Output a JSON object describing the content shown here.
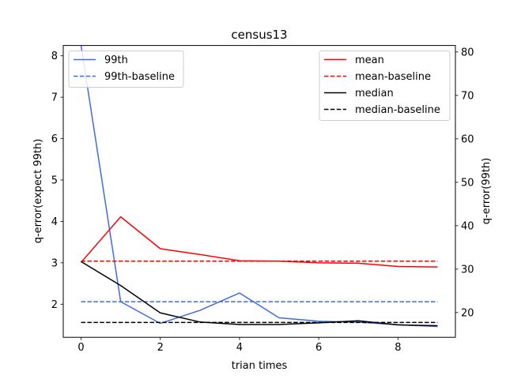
{
  "chart_data": {
    "type": "line",
    "title": "census13",
    "xlabel": "trian times",
    "ylabel_left": "q-error(expect 99th)",
    "ylabel_right": "q-error(99th)",
    "x": [
      0,
      1,
      2,
      3,
      4,
      5,
      6,
      7,
      8,
      9
    ],
    "xlim": [
      -0.45,
      9.45
    ],
    "ylim_left": [
      1.2,
      8.25
    ],
    "ylim_right": [
      14.3,
      81.5
    ],
    "xticks": [
      0,
      2,
      4,
      6,
      8
    ],
    "yticks_left": [
      2,
      3,
      4,
      5,
      6,
      7,
      8
    ],
    "yticks_right": [
      20,
      30,
      40,
      50,
      60,
      70,
      80
    ],
    "grid": false,
    "series": [
      {
        "name": "mean",
        "axis": "left",
        "color": "#ff0000",
        "dashed": false,
        "values": [
          3.01,
          4.11,
          3.34,
          3.2,
          3.05,
          3.04,
          3.0,
          2.99,
          2.91,
          2.9
        ]
      },
      {
        "name": "mean-baseline",
        "axis": "left",
        "color": "#ff0000",
        "dashed": true,
        "values": [
          3.04,
          3.04,
          3.04,
          3.04,
          3.04,
          3.04,
          3.04,
          3.04,
          3.04,
          3.04
        ]
      },
      {
        "name": "median",
        "axis": "left",
        "color": "#000000",
        "dashed": false,
        "values": [
          3.03,
          2.45,
          1.79,
          1.57,
          1.51,
          1.51,
          1.55,
          1.6,
          1.5,
          1.48
        ]
      },
      {
        "name": "median-baseline",
        "axis": "left",
        "color": "#000000",
        "dashed": true,
        "values": [
          1.56,
          1.56,
          1.56,
          1.56,
          1.56,
          1.56,
          1.56,
          1.56,
          1.56,
          1.56
        ]
      },
      {
        "name": "99th",
        "axis": "right",
        "color": "#4169e1",
        "dashed": false,
        "values": [
          81.5,
          22.5,
          17.5,
          20.5,
          24.5,
          18.8,
          18.0,
          17.8,
          17.2,
          16.8
        ]
      },
      {
        "name": "99th-baseline",
        "axis": "right",
        "color": "#4169e1",
        "dashed": true,
        "values": [
          22.5,
          22.5,
          22.5,
          22.5,
          22.5,
          22.5,
          22.5,
          22.5,
          22.5,
          22.5
        ]
      }
    ],
    "legend_left": {
      "placement": "upper-left",
      "entries": [
        "99th",
        "99th-baseline"
      ]
    },
    "legend_right": {
      "placement": "upper-right",
      "entries": [
        "mean",
        "mean-baseline",
        "median",
        "median-baseline"
      ]
    }
  }
}
